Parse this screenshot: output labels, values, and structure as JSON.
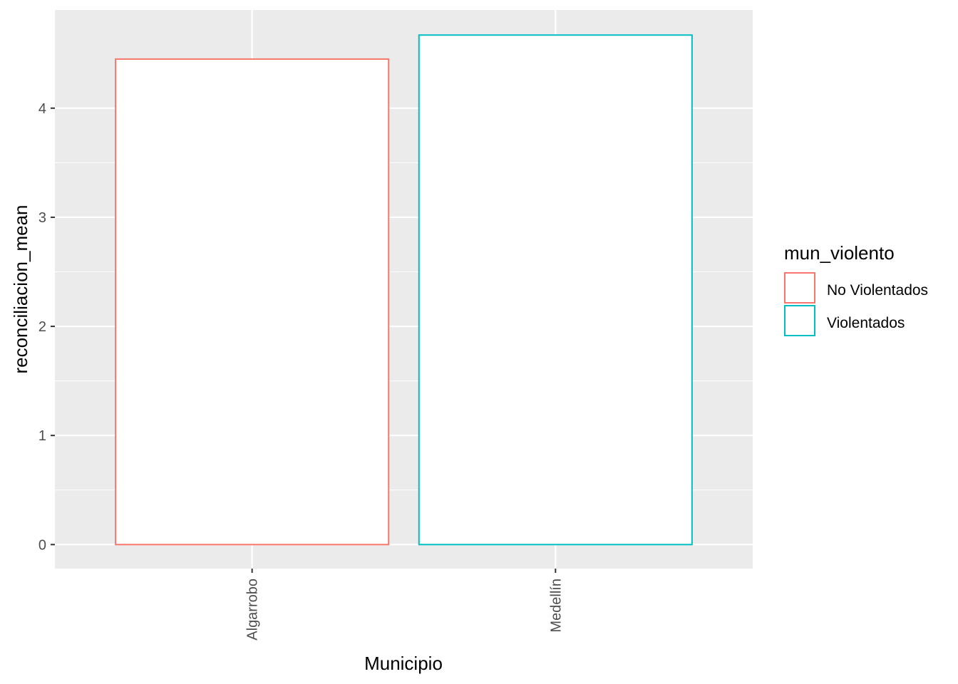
{
  "chart_data": {
    "type": "bar",
    "xlabel": "Municipio",
    "ylabel": "reconciliacion_mean",
    "categories": [
      "Algarrobo",
      "Medellín"
    ],
    "values": [
      4.45,
      4.67
    ],
    "bar_series": [
      "No Violentados",
      "Violentados"
    ],
    "ylim": [
      -0.22,
      4.9
    ],
    "yticks": [
      0,
      1,
      2,
      3,
      4
    ],
    "ytick_labels": [
      "0",
      "1",
      "2",
      "3",
      "4"
    ],
    "grid": true,
    "legend": {
      "title": "mun_violento",
      "position": "right",
      "items": [
        {
          "label": "No Violentados",
          "color": "#f8766d"
        },
        {
          "label": "Violentados",
          "color": "#00bfc4"
        }
      ]
    },
    "colors": {
      "panel_background": "#ebebeb",
      "gridline": "#ffffff",
      "bar_fill": "#ffffff"
    }
  }
}
